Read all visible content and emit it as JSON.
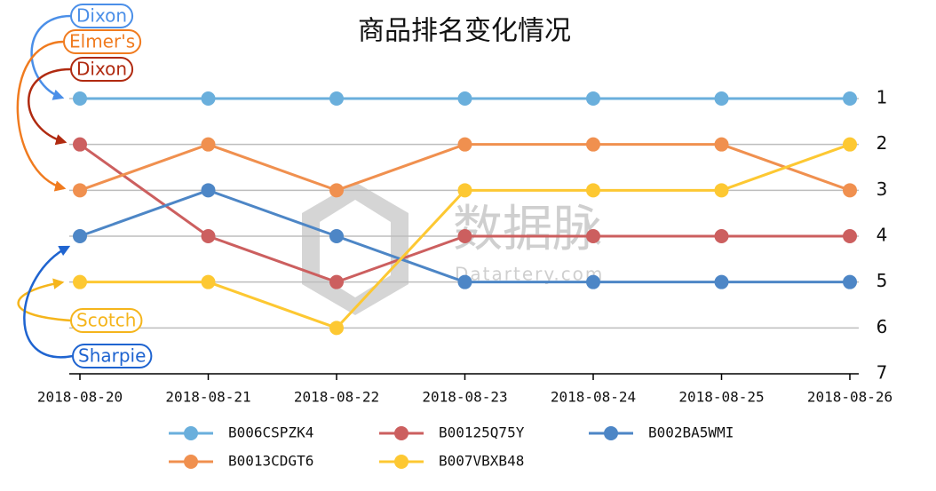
{
  "chart_data": {
    "type": "line",
    "title": "商品排名变化情况",
    "categories": [
      "2018-08-20",
      "2018-08-21",
      "2018-08-22",
      "2018-08-23",
      "2018-08-24",
      "2018-08-25",
      "2018-08-26"
    ],
    "series": [
      {
        "name": "B006CSPZK4",
        "color": "#6aafdc",
        "values": [
          1,
          1,
          1,
          1,
          1,
          1,
          1
        ]
      },
      {
        "name": "B00125Q75Y",
        "color": "#cc5f5f",
        "values": [
          2,
          4,
          5,
          4,
          4,
          4,
          4
        ]
      },
      {
        "name": "B002BA5WMI",
        "color": "#4d86c6",
        "values": [
          4,
          3,
          4,
          5,
          5,
          5,
          5
        ]
      },
      {
        "name": "B0013CDGT6",
        "color": "#f0904f",
        "values": [
          3,
          2,
          3,
          2,
          2,
          2,
          3
        ]
      },
      {
        "name": "B007VBXB48",
        "color": "#fdc832",
        "values": [
          5,
          5,
          6,
          3,
          3,
          3,
          2
        ]
      }
    ],
    "ylim": [
      1,
      7
    ],
    "y_inverted": true,
    "yticks": [
      1,
      2,
      3,
      4,
      5,
      6,
      7
    ],
    "grid": true,
    "annotations": [
      {
        "text": "Dixon",
        "color": "#4b8fe8"
      },
      {
        "text": "Elmer's",
        "color": "#f07b1f"
      },
      {
        "text": "Dixon",
        "color": "#b02a10"
      },
      {
        "text": "Scotch",
        "color": "#f5b51c"
      },
      {
        "text": "Sharpie",
        "color": "#1f64d0"
      }
    ],
    "watermark": {
      "main": "数据脉",
      "sub": "Datartery.com"
    }
  }
}
